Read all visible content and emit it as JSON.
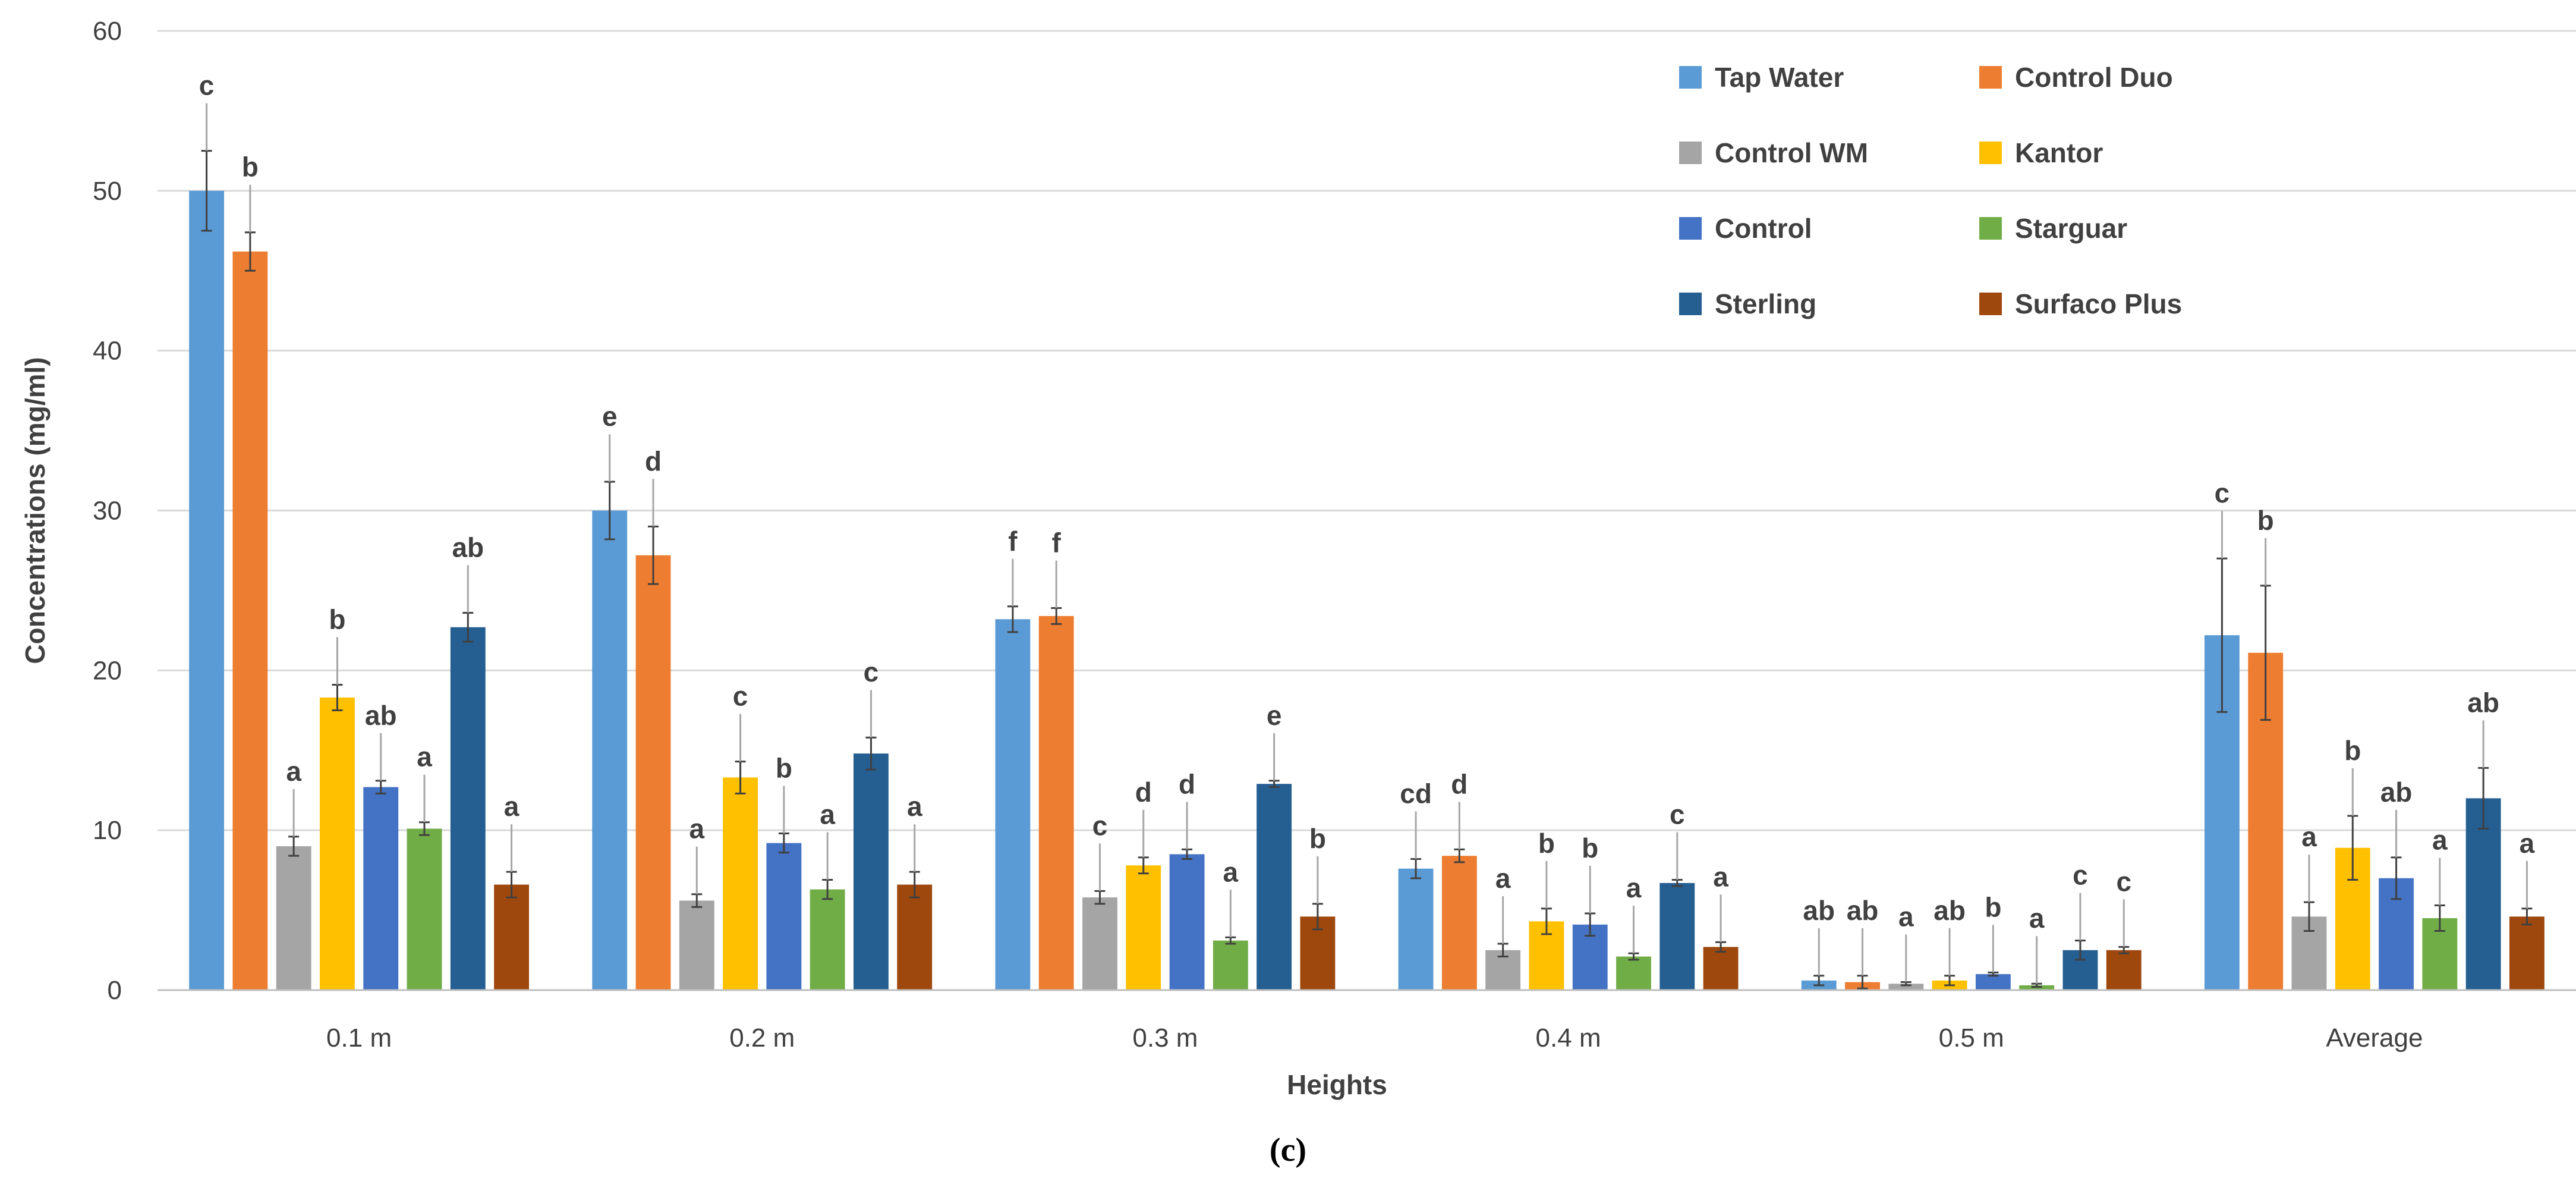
{
  "chart_data": {
    "type": "bar",
    "title": "",
    "xlabel": "Heights",
    "ylabel": "Concentrations  (mg/ml)",
    "ylim": [
      0,
      60
    ],
    "yticks": [
      0,
      10,
      20,
      30,
      40,
      50,
      60
    ],
    "grid": true,
    "legend_position": "top-right",
    "caption": "(c)",
    "categories": [
      "0.1 m",
      "0.2 m",
      "0.3 m",
      "0.4 m",
      "0.5 m",
      "Average"
    ],
    "colors": {
      "Tap Water": "#5b9bd5",
      "Control Duo": "#ed7d31",
      "Control WM": "#a5a5a5",
      "Kantor": "#ffc000",
      "Control": "#4472c4",
      "Starguar": "#70ad47",
      "Sterling": "#255e91",
      "Surfaco Plus": "#9e480e"
    },
    "series": [
      {
        "name": "Tap Water",
        "values": [
          50.0,
          30.0,
          23.2,
          7.6,
          0.6,
          22.2
        ],
        "errors": [
          2.5,
          1.8,
          0.8,
          0.6,
          0.3,
          4.8
        ],
        "labels": [
          "c",
          "e",
          "f",
          "cd",
          "ab",
          "c"
        ]
      },
      {
        "name": "Control Duo",
        "values": [
          46.2,
          27.2,
          23.4,
          8.4,
          0.5,
          21.1
        ],
        "errors": [
          1.2,
          1.8,
          0.5,
          0.4,
          0.4,
          4.2
        ],
        "labels": [
          "b",
          "d",
          "f",
          "d",
          "ab",
          "b"
        ]
      },
      {
        "name": "Control WM",
        "values": [
          9.0,
          5.6,
          5.8,
          2.5,
          0.4,
          4.6
        ],
        "errors": [
          0.6,
          0.4,
          0.4,
          0.4,
          0.1,
          0.9
        ],
        "labels": [
          "a",
          "a",
          "c",
          "a",
          "a",
          "a"
        ]
      },
      {
        "name": "Kantor",
        "values": [
          18.3,
          13.3,
          7.8,
          4.3,
          0.6,
          8.9
        ],
        "errors": [
          0.8,
          1.0,
          0.5,
          0.8,
          0.3,
          2.0
        ],
        "labels": [
          "b",
          "c",
          "d",
          "b",
          "ab",
          "b"
        ]
      },
      {
        "name": "Control",
        "values": [
          12.7,
          9.2,
          8.5,
          4.1,
          1.0,
          7.0
        ],
        "errors": [
          0.4,
          0.6,
          0.3,
          0.7,
          0.1,
          1.3
        ],
        "labels": [
          "ab",
          "b",
          "d",
          "b",
          "b",
          "ab"
        ]
      },
      {
        "name": "Starguar",
        "values": [
          10.1,
          6.3,
          3.1,
          2.1,
          0.3,
          4.5
        ],
        "errors": [
          0.4,
          0.6,
          0.2,
          0.2,
          0.1,
          0.8
        ],
        "labels": [
          "a",
          "a",
          "a",
          "a",
          "a",
          "a"
        ]
      },
      {
        "name": "Sterling",
        "values": [
          22.7,
          14.8,
          12.9,
          6.7,
          2.5,
          12.0
        ],
        "errors": [
          0.9,
          1.0,
          0.2,
          0.2,
          0.6,
          1.9
        ],
        "labels": [
          "ab",
          "c",
          "e",
          "c",
          "c",
          "ab"
        ]
      },
      {
        "name": "Surfaco Plus",
        "values": [
          6.6,
          6.6,
          4.6,
          2.7,
          2.5,
          4.6
        ],
        "errors": [
          0.8,
          0.8,
          0.8,
          0.3,
          0.2,
          0.5
        ],
        "labels": [
          "a",
          "a",
          "b",
          "a",
          "c",
          "a"
        ]
      }
    ]
  }
}
